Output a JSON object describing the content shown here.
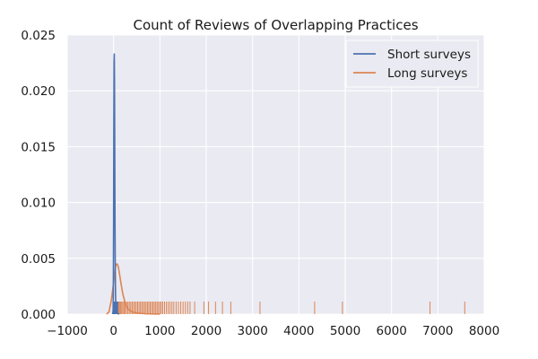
{
  "chart_data": {
    "type": "line",
    "title": "Count of Reviews of Overlapping Practices",
    "xlabel": "",
    "ylabel": "",
    "xlim": [
      -1000,
      8000
    ],
    "ylim": [
      0,
      0.025
    ],
    "x_ticks": [
      -1000,
      0,
      1000,
      2000,
      3000,
      4000,
      5000,
      6000,
      7000,
      8000
    ],
    "x_tick_labels": [
      "−1000",
      "0",
      "1000",
      "2000",
      "3000",
      "4000",
      "5000",
      "6000",
      "7000",
      "8000"
    ],
    "y_ticks": [
      0,
      0.005,
      0.01,
      0.015,
      0.02,
      0.025
    ],
    "y_tick_labels": [
      "0.000",
      "0.005",
      "0.010",
      "0.015",
      "0.020",
      "0.025"
    ],
    "grid": true,
    "background_color": "#eaeaf2",
    "legend_position": "top-right",
    "series": [
      {
        "name": "Short surveys",
        "color": "#4c72b0",
        "kde": {
          "x": [
            -20,
            -10,
            -5,
            0,
            5,
            10,
            15,
            20,
            25,
            30,
            35,
            40,
            45,
            50,
            60,
            70,
            80,
            100,
            120
          ],
          "y": [
            0,
            0.0003,
            0.002,
            0.008,
            0.016,
            0.0225,
            0.0233,
            0.021,
            0.015,
            0.009,
            0.005,
            0.0025,
            0.0012,
            0.0007,
            0.0004,
            0.0002,
            0.0001,
            3e-05,
            0
          ]
        },
        "rug": [
          1,
          3,
          5,
          7,
          9,
          11,
          13,
          15,
          18,
          22,
          26,
          30,
          35,
          42,
          50,
          60,
          75,
          90
        ]
      },
      {
        "name": "Long surveys",
        "color": "#dd8452",
        "kde": {
          "x": [
            -150,
            -100,
            -50,
            0,
            25,
            50,
            75,
            100,
            125,
            150,
            200,
            250,
            300,
            400,
            500,
            700,
            1000
          ],
          "y": [
            0,
            0.0002,
            0.0012,
            0.0028,
            0.0038,
            0.0044,
            0.0045,
            0.0043,
            0.0037,
            0.003,
            0.0018,
            0.001,
            0.0005,
            0.0002,
            0.0001,
            3e-05,
            0
          ]
        },
        "rug": [
          20,
          35,
          50,
          70,
          90,
          110,
          130,
          150,
          175,
          200,
          225,
          250,
          280,
          310,
          340,
          370,
          400,
          430,
          460,
          490,
          520,
          550,
          580,
          610,
          640,
          670,
          700,
          730,
          760,
          790,
          820,
          850,
          880,
          910,
          940,
          970,
          1000,
          1030,
          1060,
          1100,
          1140,
          1180,
          1220,
          1260,
          1300,
          1350,
          1400,
          1450,
          1500,
          1550,
          1600,
          1650,
          1750,
          1950,
          2050,
          2200,
          2350,
          2530,
          3160,
          4340,
          4940,
          6830,
          7580
        ]
      }
    ]
  }
}
